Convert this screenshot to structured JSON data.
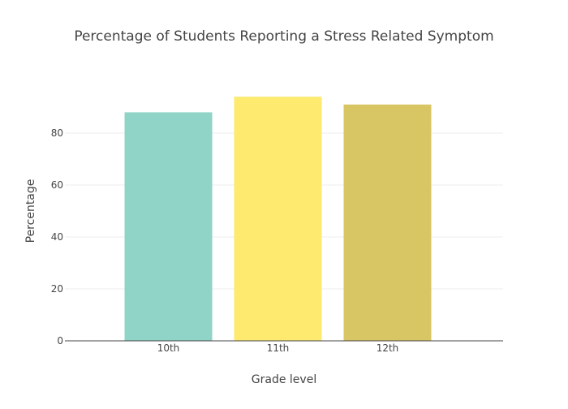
{
  "chart_data": {
    "type": "bar",
    "title": "Percentage of Students Reporting a Stress Related Symptom",
    "xlabel": "Grade level",
    "ylabel": "Percentage",
    "categories": [
      "10th",
      "11th",
      "12th"
    ],
    "values": [
      88,
      94,
      91
    ],
    "colors": [
      "#8fd4c7",
      "#fdea6f",
      "#d8c665"
    ],
    "ylim": [
      0,
      100
    ],
    "yticks": [
      0,
      20,
      40,
      60,
      80
    ],
    "grid": true,
    "legend": "none"
  }
}
